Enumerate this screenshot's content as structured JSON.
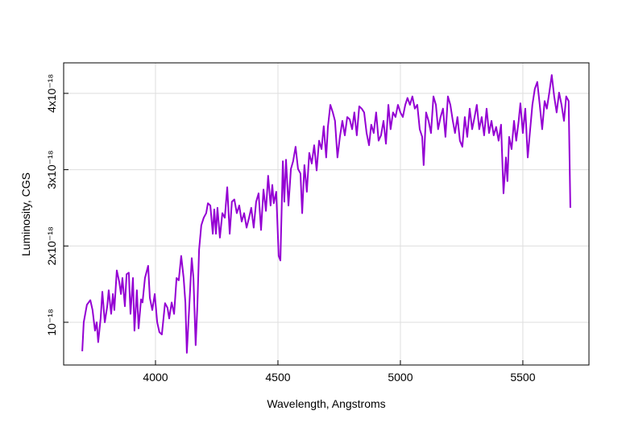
{
  "chart_data": {
    "type": "line",
    "x_label": "Wavelength, Angstroms",
    "y_label": "Luminosity, CGS",
    "color": "#9400d3",
    "grid": true,
    "xlim": [
      3625,
      5770
    ],
    "ylim": [
      4.4e-19,
      4.4e-18
    ],
    "xticks": [
      4000,
      4500,
      5000,
      5500
    ],
    "yticks": [
      {
        "value": 1e-18,
        "label": "10⁻¹⁸"
      },
      {
        "value": 2e-18,
        "label": "2x10⁻¹⁸"
      },
      {
        "value": 3e-18,
        "label": "3x10⁻¹⁸"
      },
      {
        "value": 4e-18,
        "label": "4x10⁻¹⁸"
      }
    ],
    "x": [
      3701,
      3707,
      3720,
      3734,
      3743,
      3753,
      3760,
      3766,
      3776,
      3783,
      3793,
      3803,
      3809,
      3819,
      3826,
      3832,
      3842,
      3852,
      3859,
      3865,
      3875,
      3882,
      3891,
      3898,
      3908,
      3914,
      3924,
      3931,
      3941,
      3947,
      3957,
      3970,
      3977,
      3987,
      3997,
      4007,
      4016,
      4026,
      4039,
      4049,
      4056,
      4066,
      4076,
      4086,
      4095,
      4105,
      4115,
      4122,
      4128,
      4138,
      4148,
      4155,
      4164,
      4171,
      4178,
      4187,
      4197,
      4207,
      4214,
      4224,
      4234,
      4240,
      4247,
      4253,
      4263,
      4273,
      4283,
      4293,
      4303,
      4312,
      4322,
      4332,
      4342,
      4352,
      4362,
      4372,
      4382,
      4391,
      4401,
      4411,
      4421,
      4431,
      4441,
      4451,
      4460,
      4470,
      4477,
      4483,
      4493,
      4503,
      4510,
      4520,
      4526,
      4533,
      4543,
      4553,
      4562,
      4572,
      4582,
      4592,
      4599,
      4608,
      4618,
      4628,
      4638,
      4648,
      4658,
      4668,
      4678,
      4687,
      4697,
      4704,
      4714,
      4724,
      4733,
      4743,
      4753,
      4763,
      4773,
      4783,
      4793,
      4803,
      4812,
      4822,
      4832,
      4842,
      4852,
      4862,
      4872,
      4881,
      4891,
      4901,
      4911,
      4921,
      4931,
      4941,
      4951,
      4960,
      4970,
      4980,
      4990,
      5000,
      5010,
      5020,
      5029,
      5039,
      5049,
      5059,
      5069,
      5079,
      5089,
      5095,
      5105,
      5115,
      5125,
      5135,
      5145,
      5154,
      5164,
      5174,
      5184,
      5194,
      5204,
      5214,
      5223,
      5233,
      5243,
      5253,
      5263,
      5273,
      5283,
      5293,
      5303,
      5312,
      5322,
      5332,
      5342,
      5352,
      5362,
      5372,
      5381,
      5391,
      5401,
      5411,
      5421,
      5431,
      5437,
      5444,
      5454,
      5464,
      5473,
      5483,
      5490,
      5500,
      5510,
      5520,
      5530,
      5539,
      5549,
      5559,
      5569,
      5579,
      5589,
      5598,
      5608,
      5618,
      5628,
      5638,
      5648,
      5658,
      5668,
      5677,
      5687,
      5694
    ],
    "values": [
      6.2e-19,
      1e-18,
      1.23e-18,
      1.29e-18,
      1.16e-18,
      8.9e-19,
      1e-18,
      7.4e-19,
      1.05e-18,
      1.4e-18,
      1e-18,
      1.21e-18,
      1.42e-18,
      1.11e-18,
      1.37e-18,
      1.16e-18,
      1.68e-18,
      1.53e-18,
      1.37e-18,
      1.58e-18,
      1.21e-18,
      1.63e-18,
      1.65e-18,
      1.11e-18,
      1.58e-18,
      8.9e-19,
      1.42e-18,
      9.2e-19,
      1.3e-18,
      1.26e-18,
      1.58e-18,
      1.74e-18,
      1.32e-18,
      1.16e-18,
      1.37e-18,
      1e-18,
      8.7e-19,
      8.4e-19,
      1.25e-18,
      1.19e-18,
      1.05e-18,
      1.26e-18,
      1.11e-18,
      1.58e-18,
      1.55e-18,
      1.87e-18,
      1.58e-18,
      1.26e-18,
      6e-19,
      1.21e-18,
      1.84e-18,
      1.58e-18,
      7e-19,
      1.21e-18,
      1.95e-18,
      2.27e-18,
      2.37e-18,
      2.43e-18,
      2.56e-18,
      2.53e-18,
      2.16e-18,
      2.48e-18,
      2.16e-18,
      2.5e-18,
      2.11e-18,
      2.43e-18,
      2.37e-18,
      2.77e-18,
      2.16e-18,
      2.58e-18,
      2.61e-18,
      2.43e-18,
      2.53e-18,
      2.32e-18,
      2.43e-18,
      2.24e-18,
      2.37e-18,
      2.5e-18,
      2.24e-18,
      2.58e-18,
      2.69e-18,
      2.21e-18,
      2.74e-18,
      2.46e-18,
      2.92e-18,
      2.53e-18,
      2.8e-18,
      2.56e-18,
      2.71e-18,
      1.87e-18,
      1.81e-18,
      3.11e-18,
      2.58e-18,
      3.13e-18,
      2.53e-18,
      3.01e-18,
      3.11e-18,
      3.3e-18,
      3.01e-18,
      2.95e-18,
      2.43e-18,
      3.06e-18,
      2.71e-18,
      3.22e-18,
      3.08e-18,
      3.32e-18,
      2.99e-18,
      3.38e-18,
      3.27e-18,
      3.57e-18,
      3.16e-18,
      3.56e-18,
      3.85e-18,
      3.75e-18,
      3.64e-18,
      3.16e-18,
      3.43e-18,
      3.64e-18,
      3.45e-18,
      3.69e-18,
      3.66e-18,
      3.53e-18,
      3.75e-18,
      3.45e-18,
      3.83e-18,
      3.8e-18,
      3.75e-18,
      3.48e-18,
      3.32e-18,
      3.59e-18,
      3.48e-18,
      3.75e-18,
      3.38e-18,
      3.45e-18,
      3.64e-18,
      3.34e-18,
      3.85e-18,
      3.53e-18,
      3.75e-18,
      3.69e-18,
      3.85e-18,
      3.75e-18,
      3.69e-18,
      3.85e-18,
      3.94e-18,
      3.85e-18,
      3.96e-18,
      3.8e-18,
      3.85e-18,
      3.53e-18,
      3.43e-18,
      3.06e-18,
      3.75e-18,
      3.64e-18,
      3.48e-18,
      3.96e-18,
      3.85e-18,
      3.53e-18,
      3.69e-18,
      3.8e-18,
      3.43e-18,
      3.96e-18,
      3.85e-18,
      3.64e-18,
      3.48e-18,
      3.69e-18,
      3.38e-18,
      3.3e-18,
      3.69e-18,
      3.43e-18,
      3.8e-18,
      3.53e-18,
      3.69e-18,
      3.85e-18,
      3.53e-18,
      3.69e-18,
      3.45e-18,
      3.8e-18,
      3.48e-18,
      3.64e-18,
      3.45e-18,
      3.56e-18,
      3.38e-18,
      3.59e-18,
      2.69e-18,
      3.16e-18,
      2.85e-18,
      3.43e-18,
      3.27e-18,
      3.64e-18,
      3.38e-18,
      3.64e-18,
      3.87e-18,
      3.48e-18,
      3.8e-18,
      3.16e-18,
      3.53e-18,
      3.85e-18,
      4.06e-18,
      4.15e-18,
      3.85e-18,
      3.53e-18,
      3.9e-18,
      3.8e-18,
      4.01e-18,
      4.24e-18,
      3.96e-18,
      3.75e-18,
      4.01e-18,
      3.85e-18,
      3.64e-18,
      3.96e-18,
      3.9e-18,
      2.5e-18
    ]
  }
}
